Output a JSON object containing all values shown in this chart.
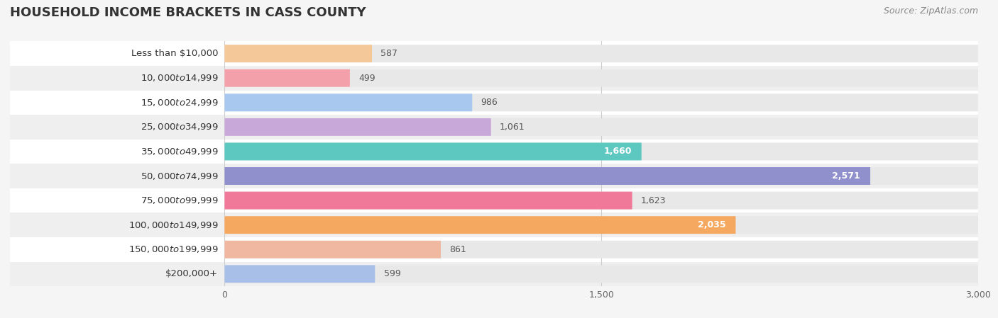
{
  "title": "HOUSEHOLD INCOME BRACKETS IN CASS COUNTY",
  "source": "Source: ZipAtlas.com",
  "categories": [
    "Less than $10,000",
    "$10,000 to $14,999",
    "$15,000 to $24,999",
    "$25,000 to $34,999",
    "$35,000 to $49,999",
    "$50,000 to $74,999",
    "$75,000 to $99,999",
    "$100,000 to $149,999",
    "$150,000 to $199,999",
    "$200,000+"
  ],
  "values": [
    587,
    499,
    986,
    1061,
    1660,
    2571,
    1623,
    2035,
    861,
    599
  ],
  "bar_colors": [
    "#f5c89a",
    "#f4a0aa",
    "#a8c8f0",
    "#c8a8d8",
    "#5cc8c0",
    "#9090cc",
    "#f07898",
    "#f5a860",
    "#f0b8a0",
    "#a8c0e8"
  ],
  "xlim": [
    0,
    3000
  ],
  "xticks": [
    0,
    1500,
    3000
  ],
  "xtick_labels": [
    "0",
    "1,500",
    "3,000"
  ],
  "background_color": "#f5f5f5",
  "row_colors": [
    "#ffffff",
    "#efefef"
  ],
  "bar_bg_color": "#e8e8e8",
  "title_fontsize": 13,
  "label_fontsize": 9.5,
  "value_fontsize": 9,
  "source_fontsize": 9
}
